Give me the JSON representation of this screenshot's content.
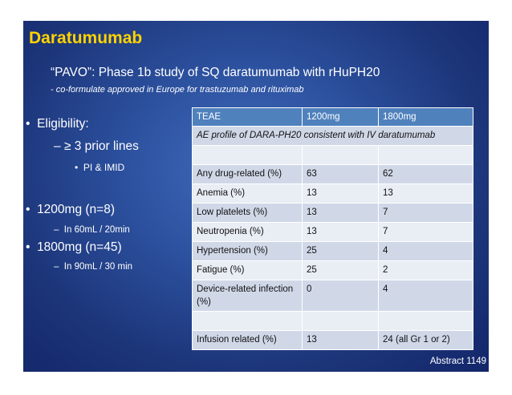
{
  "slide": {
    "title": "Daratumumab",
    "subtitle": "“PAVO”: Phase 1b study of SQ daratumumab with rHuPH20",
    "subnote": "- co-formulate approved in Europe for trastuzumab and rituximab",
    "bullets": {
      "eligibility": "Eligibility:",
      "prior_lines": "≥ 3 prior lines",
      "pi_imid": "PI & IMID",
      "dose_1200": "1200mg (n=8)",
      "dose_1200_detail": "In 60mL / 20min",
      "dose_1800": "1800mg (n=45)",
      "dose_1800_detail": "In 90mL / 30 min"
    },
    "marks": {
      "l1": "•",
      "l2": "–",
      "l3": "•"
    },
    "table": {
      "headers": [
        "TEAE",
        "1200mg",
        "1800mg"
      ],
      "note": "AE profile of DARA-PH20 consistent with IV daratumumab",
      "rows": [
        [
          "Any drug-related (%)",
          "63",
          "62"
        ],
        [
          "Anemia (%)",
          "13",
          "13"
        ],
        [
          "Low platelets (%)",
          "13",
          "7"
        ],
        [
          "Neutropenia (%)",
          "13",
          "7"
        ],
        [
          "Hypertension (%)",
          "25",
          "4"
        ],
        [
          "Fatigue (%)",
          "25",
          "2"
        ],
        [
          "Device-related infection (%)",
          "0",
          "4"
        ],
        [
          "",
          "",
          ""
        ],
        [
          "Infusion related (%)",
          "13",
          "24 (all Gr 1 or 2)"
        ]
      ]
    },
    "footer": "Abstract 1149"
  }
}
